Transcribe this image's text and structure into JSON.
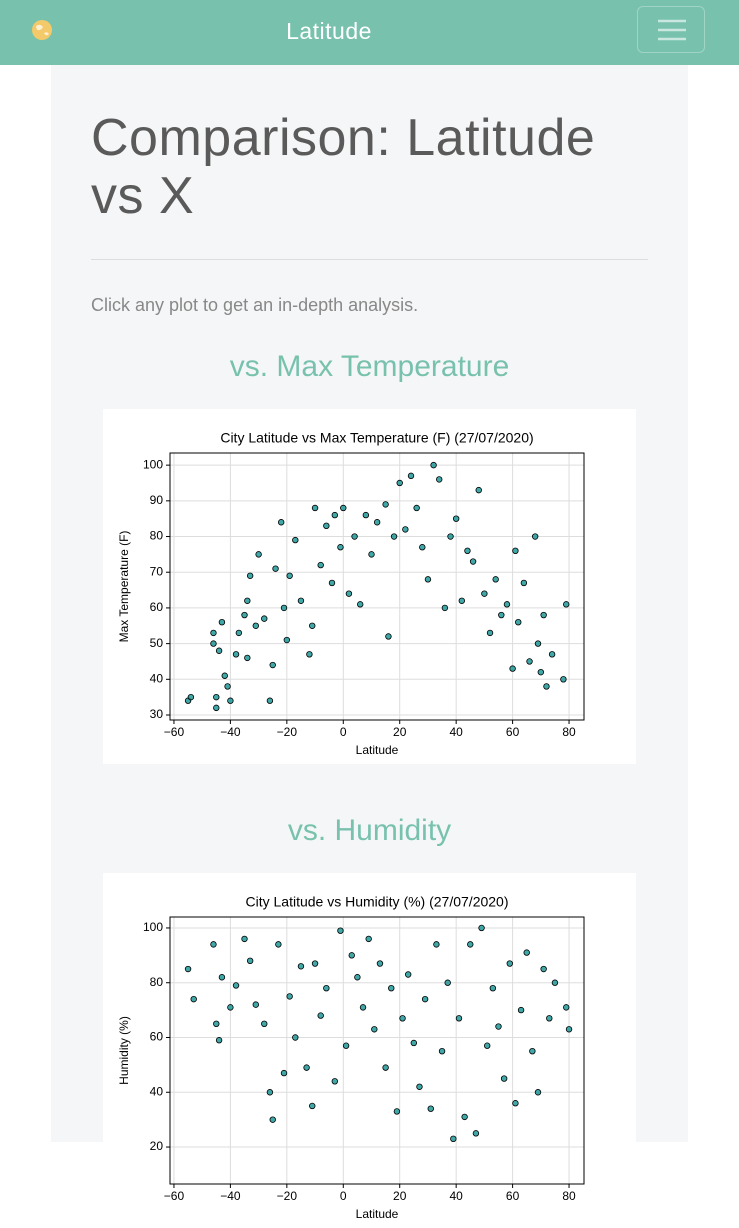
{
  "navbar": {
    "brand": "Latitude"
  },
  "page": {
    "title": "Comparison: Latitude vs X",
    "intro": "Click any plot to get an in-depth analysis."
  },
  "sections": [
    {
      "heading": "vs. Max Temperature",
      "chart_data": {
        "type": "scatter",
        "title": "City Latitude vs Max Temperature (F) (27/07/2020)",
        "x_label": "Latitude",
        "y_label": "Max Temperature (F)",
        "color": "#008b8b",
        "grid": true,
        "xlim": [
          -61.4,
          85.3
        ],
        "ylim": [
          28.6,
          103.4
        ],
        "xticks": [
          {
            "value": -60,
            "label": "−60"
          },
          {
            "value": -40,
            "label": "−40"
          },
          {
            "value": -20,
            "label": "−20"
          },
          0,
          20,
          40,
          60,
          80
        ],
        "yticks": [
          30,
          40,
          50,
          60,
          70,
          80,
          90,
          100
        ],
        "x": [
          -55,
          -54,
          -46,
          -46,
          -45,
          -45,
          -44,
          -43,
          -42,
          -41,
          -40,
          -38,
          -37,
          -35,
          -34,
          -34,
          -33,
          -31,
          -30,
          -28,
          -26,
          -25,
          -24,
          -22,
          -21,
          -20,
          -19,
          -17,
          -15,
          -12,
          -11,
          -10,
          -8,
          -6,
          -4,
          -3,
          -1,
          0,
          2,
          4,
          6,
          8,
          10,
          12,
          15,
          16,
          18,
          20,
          22,
          24,
          26,
          28,
          30,
          32,
          34,
          36,
          38,
          40,
          42,
          44,
          46,
          48,
          50,
          52,
          54,
          56,
          58,
          60,
          61,
          62,
          64,
          66,
          68,
          69,
          70,
          71,
          72,
          74,
          78,
          79
        ],
        "values": [
          34,
          35,
          50,
          53,
          32,
          35,
          48,
          56,
          41,
          38,
          34,
          47,
          53,
          58,
          46,
          62,
          69,
          55,
          75,
          57,
          34,
          44,
          71,
          84,
          60,
          51,
          69,
          79,
          62,
          47,
          55,
          88,
          72,
          83,
          67,
          86,
          77,
          88,
          64,
          80,
          61,
          86,
          75,
          84,
          89,
          52,
          80,
          95,
          82,
          97,
          88,
          77,
          68,
          100,
          96,
          60,
          80,
          85,
          62,
          76,
          73,
          93,
          64,
          53,
          68,
          58,
          61,
          43,
          76,
          56,
          67,
          45,
          80,
          50,
          42,
          58,
          38,
          47,
          40,
          61
        ]
      }
    },
    {
      "heading": "vs. Humidity",
      "chart_data": {
        "type": "scatter",
        "title": "City Latitude vs Humidity (%) (27/07/2020)",
        "x_label": "Latitude",
        "y_label": "Humidity (%)",
        "color": "#008b8b",
        "grid": true,
        "xlim": [
          -61.4,
          85.3
        ],
        "ylim": [
          6.5,
          104
        ],
        "xticks": [
          {
            "value": -60,
            "label": "−60"
          },
          {
            "value": -40,
            "label": "−40"
          },
          {
            "value": -20,
            "label": "−20"
          },
          0,
          20,
          40,
          60,
          80
        ],
        "yticks": [
          20,
          40,
          60,
          80,
          100
        ],
        "x": [
          -55,
          -53,
          -46,
          -45,
          -44,
          -43,
          -40,
          -38,
          -35,
          -33,
          -31,
          -28,
          -26,
          -25,
          -23,
          -21,
          -19,
          -17,
          -15,
          -13,
          -11,
          -10,
          -8,
          -6,
          -3,
          -1,
          1,
          3,
          5,
          7,
          9,
          11,
          13,
          15,
          17,
          19,
          21,
          23,
          25,
          27,
          29,
          31,
          33,
          35,
          37,
          39,
          41,
          43,
          45,
          47,
          49,
          51,
          53,
          55,
          57,
          59,
          61,
          63,
          65,
          67,
          69,
          71,
          73,
          75,
          79,
          80
        ],
        "values": [
          85,
          74,
          94,
          65,
          59,
          82,
          71,
          79,
          96,
          88,
          72,
          65,
          40,
          30,
          94,
          47,
          75,
          60,
          86,
          49,
          35,
          87,
          68,
          78,
          44,
          99,
          57,
          90,
          82,
          71,
          96,
          63,
          87,
          49,
          78,
          33,
          67,
          83,
          58,
          42,
          74,
          34,
          94,
          55,
          80,
          23,
          67,
          31,
          94,
          25,
          100,
          57,
          78,
          64,
          45,
          87,
          36,
          70,
          91,
          55,
          40,
          85,
          67,
          80,
          71,
          63
        ]
      }
    }
  ]
}
